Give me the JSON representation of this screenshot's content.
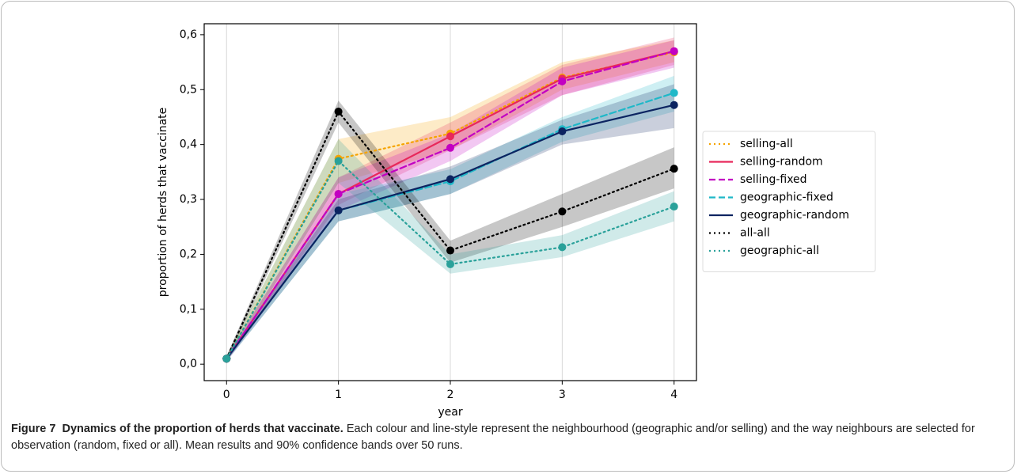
{
  "chart_data": {
    "type": "line",
    "xlabel": "year",
    "ylabel": "proportion of herds that vaccinate",
    "x": [
      0,
      1,
      2,
      3,
      4
    ],
    "xlim": [
      -0.2,
      4.2
    ],
    "xticks": [
      0,
      1,
      2,
      3,
      4
    ],
    "ylim": [
      -0.03,
      0.62
    ],
    "yticks": [
      {
        "value": 0,
        "label": "0,0"
      },
      {
        "value": 0.1,
        "label": "0,1"
      },
      {
        "value": 0.2,
        "label": "0,2"
      },
      {
        "value": 0.3,
        "label": "0,3"
      },
      {
        "value": 0.4,
        "label": "0,4"
      },
      {
        "value": 0.5,
        "label": "0,5"
      },
      {
        "value": 0.6,
        "label": "0,6"
      }
    ],
    "grid": "x",
    "legend": "right",
    "series": [
      {
        "name": "selling-all",
        "color": "#f5a300",
        "linestyle": "dotted",
        "values": [
          0.01,
          0.374,
          0.42,
          0.522,
          0.568
        ],
        "lower": [
          0.005,
          0.33,
          0.39,
          0.5,
          0.55
        ],
        "upper": [
          0.015,
          0.41,
          0.45,
          0.55,
          0.59
        ]
      },
      {
        "name": "selling-random",
        "color": "#e8285a",
        "linestyle": "solid",
        "values": [
          0.01,
          0.31,
          0.415,
          0.52,
          0.57
        ],
        "lower": [
          0.005,
          0.29,
          0.39,
          0.49,
          0.545
        ],
        "upper": [
          0.015,
          0.34,
          0.44,
          0.545,
          0.595
        ]
      },
      {
        "name": "selling-fixed",
        "color": "#c200c2",
        "linestyle": "dashed",
        "values": [
          0.01,
          0.31,
          0.394,
          0.515,
          0.57
        ],
        "lower": [
          0.005,
          0.28,
          0.37,
          0.49,
          0.54
        ],
        "upper": [
          0.015,
          0.34,
          0.42,
          0.54,
          0.59
        ]
      },
      {
        "name": "geographic-fixed",
        "color": "#1fb8c8",
        "linestyle": "dashed",
        "values": [
          0.01,
          0.28,
          0.333,
          0.428,
          0.494
        ],
        "lower": [
          0.005,
          0.26,
          0.31,
          0.405,
          0.46
        ],
        "upper": [
          0.015,
          0.31,
          0.355,
          0.45,
          0.525
        ]
      },
      {
        "name": "geographic-random",
        "color": "#0c2461",
        "linestyle": "solid",
        "values": [
          0.01,
          0.28,
          0.337,
          0.424,
          0.472
        ],
        "lower": [
          0.005,
          0.26,
          0.31,
          0.4,
          0.43
        ],
        "upper": [
          0.015,
          0.3,
          0.36,
          0.445,
          0.51
        ]
      },
      {
        "name": "all-all",
        "color": "#000000",
        "linestyle": "dotted",
        "values": [
          0.01,
          0.46,
          0.207,
          0.278,
          0.356
        ],
        "lower": [
          0.005,
          0.44,
          0.185,
          0.25,
          0.32
        ],
        "upper": [
          0.015,
          0.48,
          0.225,
          0.31,
          0.395
        ]
      },
      {
        "name": "geographic-all",
        "color": "#2aa19a",
        "linestyle": "dotted",
        "values": [
          0.01,
          0.37,
          0.182,
          0.213,
          0.287
        ],
        "lower": [
          0.005,
          0.33,
          0.165,
          0.195,
          0.26
        ],
        "upper": [
          0.015,
          0.41,
          0.2,
          0.235,
          0.315
        ]
      }
    ]
  },
  "caption": {
    "label": "Figure 7",
    "title": "Dynamics of the proportion of herds that vaccinate.",
    "text": "Each colour and line-style represent the neighbourhood (geographic and/or selling) and the way neighbours are selected for observation (random, fixed or all). Mean results and 90% confidence bands over 50 runs."
  }
}
